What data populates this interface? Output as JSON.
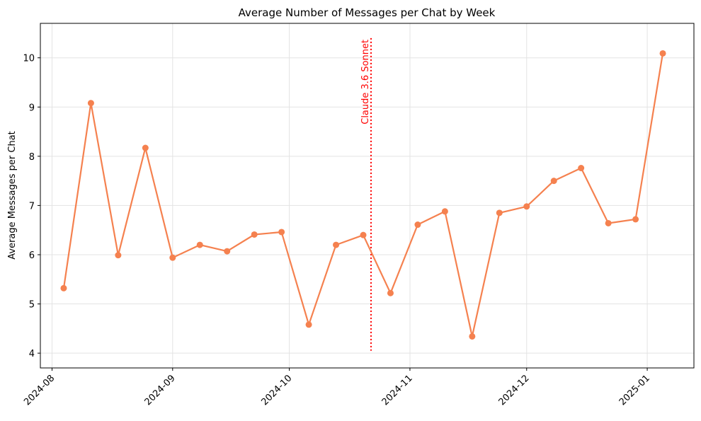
{
  "chart_data": {
    "type": "line",
    "title": "Average Number of Messages per Chat by Week",
    "xlabel": "",
    "ylabel": "Average Messages per Chat",
    "ylim": [
      3.7,
      10.7
    ],
    "xlim": [
      "2024-07-29",
      "2025-01-13"
    ],
    "grid": true,
    "y_ticks": [
      4,
      5,
      6,
      7,
      8,
      9,
      10
    ],
    "x_ticks": [
      {
        "date": "2024-08-01",
        "label": "2024-08"
      },
      {
        "date": "2024-09-01",
        "label": "2024-09"
      },
      {
        "date": "2024-10-01",
        "label": "2024-10"
      },
      {
        "date": "2024-11-01",
        "label": "2024-11"
      },
      {
        "date": "2024-12-01",
        "label": "2024-12"
      },
      {
        "date": "2025-01-01",
        "label": "2025-01"
      }
    ],
    "series": [
      {
        "color": "#f5814f",
        "points": [
          {
            "x": "2024-08-04",
            "y": 5.32
          },
          {
            "x": "2024-08-11",
            "y": 9.08
          },
          {
            "x": "2024-08-18",
            "y": 5.99
          },
          {
            "x": "2024-08-25",
            "y": 8.17
          },
          {
            "x": "2024-09-01",
            "y": 5.94
          },
          {
            "x": "2024-09-08",
            "y": 6.2
          },
          {
            "x": "2024-09-15",
            "y": 6.07
          },
          {
            "x": "2024-09-22",
            "y": 6.41
          },
          {
            "x": "2024-09-29",
            "y": 6.46
          },
          {
            "x": "2024-10-06",
            "y": 4.58
          },
          {
            "x": "2024-10-13",
            "y": 6.2
          },
          {
            "x": "2024-10-20",
            "y": 6.4
          },
          {
            "x": "2024-10-27",
            "y": 5.22
          },
          {
            "x": "2024-11-03",
            "y": 6.61
          },
          {
            "x": "2024-11-10",
            "y": 6.88
          },
          {
            "x": "2024-11-17",
            "y": 4.34
          },
          {
            "x": "2024-11-24",
            "y": 6.85
          },
          {
            "x": "2024-12-01",
            "y": 6.98
          },
          {
            "x": "2024-12-08",
            "y": 7.5
          },
          {
            "x": "2024-12-15",
            "y": 7.76
          },
          {
            "x": "2024-12-22",
            "y": 6.64
          },
          {
            "x": "2024-12-29",
            "y": 6.72
          },
          {
            "x": "2025-01-05",
            "y": 10.09
          }
        ]
      }
    ],
    "annotations": [
      {
        "type": "vline",
        "x": "2024-10-22",
        "label": "Claude 3.6 Sonnet",
        "color": "#ff0000",
        "y_range": [
          4.05,
          10.4
        ]
      }
    ]
  }
}
